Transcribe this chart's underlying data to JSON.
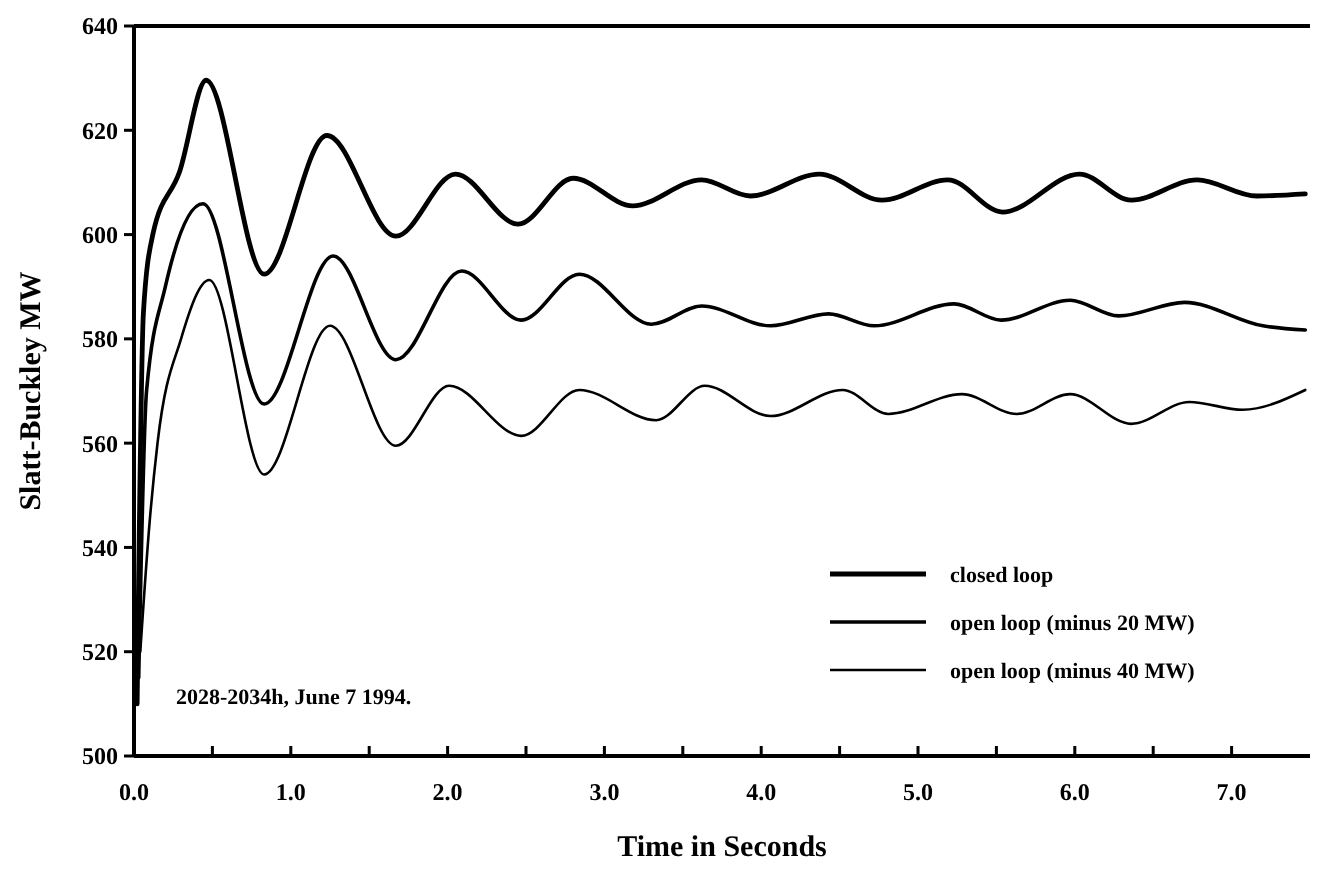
{
  "chart_data": {
    "type": "line",
    "xlabel": "Time in Seconds",
    "ylabel": "Slatt-Buckley MW",
    "xlim": [
      0,
      7.5
    ],
    "ylim": [
      500,
      640
    ],
    "xticks": [
      {
        "value": 0,
        "label": "0.0"
      },
      {
        "value": 0.5,
        "label": null
      },
      {
        "value": 1,
        "label": "1.0"
      },
      {
        "value": 1.5,
        "label": null
      },
      {
        "value": 2,
        "label": "2.0"
      },
      {
        "value": 2.5,
        "label": null
      },
      {
        "value": 3,
        "label": "3.0"
      },
      {
        "value": 3.5,
        "label": null
      },
      {
        "value": 4,
        "label": "4.0"
      },
      {
        "value": 4.5,
        "label": null
      },
      {
        "value": 5,
        "label": "5.0"
      },
      {
        "value": 5.5,
        "label": null
      },
      {
        "value": 6,
        "label": "6.0"
      },
      {
        "value": 6.5,
        "label": null
      },
      {
        "value": 7,
        "label": "7.0"
      }
    ],
    "yticks": [
      500,
      520,
      540,
      560,
      580,
      600,
      620,
      640
    ],
    "grid": false,
    "legend": "bottom right",
    "marker": "none",
    "line_style": "solid",
    "annotations": [
      "2028-2034h, June 7 1994."
    ],
    "series": [
      {
        "name": "closed loop",
        "color": "#000000",
        "x": [
          0.02,
          0.06,
          0.12,
          0.29,
          0.46,
          0.83,
          1.23,
          1.67,
          2.05,
          2.45,
          2.8,
          3.18,
          3.62,
          3.93,
          4.37,
          4.77,
          5.19,
          5.54,
          6.03,
          6.36,
          6.78,
          7.16,
          7.47
        ],
        "values": [
          510,
          585,
          600,
          612,
          629.6,
          592.4,
          619,
          599.7,
          611.6,
          602,
          610.8,
          605.5,
          610.5,
          607.4,
          611.6,
          606.6,
          610.5,
          604.3,
          611.6,
          606.6,
          610.5,
          607.4,
          607.8
        ]
      },
      {
        "name": "open loop (minus 20 MW)",
        "color": "#000000",
        "x": [
          0.03,
          0.08,
          0.2,
          0.44,
          0.83,
          1.27,
          1.67,
          2.09,
          2.47,
          2.84,
          3.3,
          3.62,
          4.06,
          4.43,
          4.72,
          5.23,
          5.53,
          5.97,
          6.28,
          6.7,
          7.2,
          7.47
        ],
        "values": [
          515,
          570,
          590,
          605.9,
          567.5,
          595.9,
          576,
          593,
          583.6,
          592.4,
          582.8,
          586.3,
          582.5,
          584.8,
          582.5,
          586.7,
          583.6,
          587.4,
          584.4,
          587,
          582.5,
          581.7
        ]
      },
      {
        "name": "open loop (minus 40 MW)",
        "color": "#000000",
        "x": [
          0.04,
          0.1,
          0.15,
          0.3,
          0.48,
          0.83,
          1.25,
          1.67,
          2.01,
          2.47,
          2.84,
          3.33,
          3.64,
          4.06,
          4.52,
          4.81,
          5.28,
          5.63,
          5.97,
          6.36,
          6.73,
          7.07,
          7.47
        ],
        "values": [
          520,
          545,
          560,
          580,
          591.3,
          554,
          582.5,
          559.5,
          571,
          561.4,
          570.2,
          564.4,
          571,
          565.2,
          570.2,
          565.6,
          569.4,
          565.6,
          569.4,
          563.7,
          567.9,
          566.4,
          570.2
        ]
      }
    ]
  }
}
